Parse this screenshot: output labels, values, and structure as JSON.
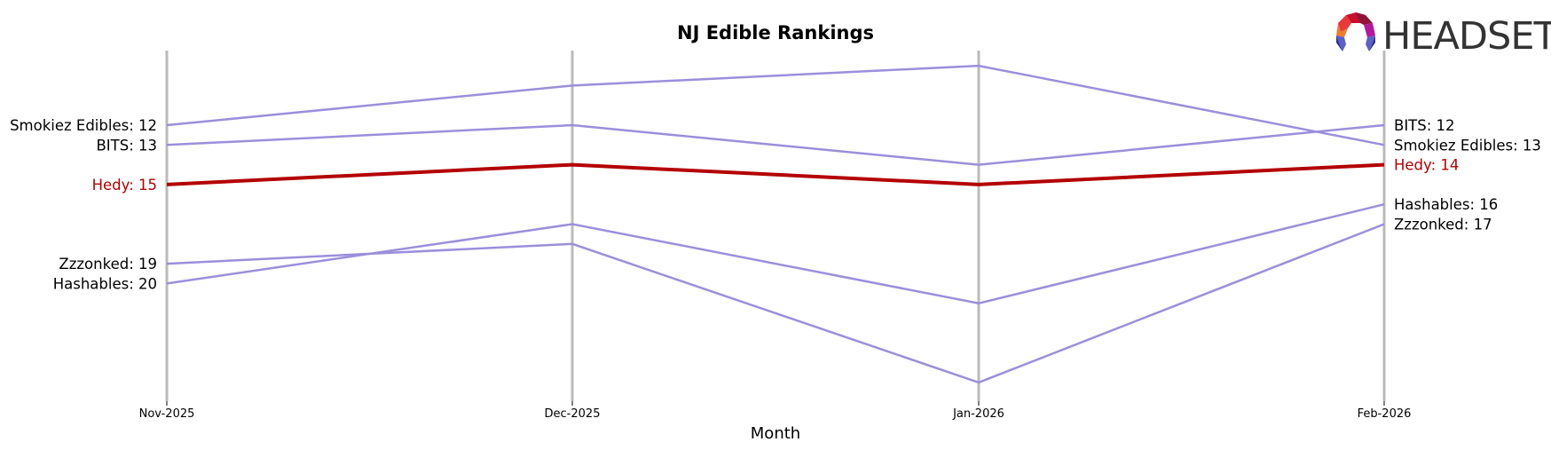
{
  "chart_data": {
    "type": "line",
    "title": "NJ Edible Rankings",
    "xlabel": "Month",
    "ylabel": "",
    "categories": [
      "Nov-2025",
      "Dec-2025",
      "Jan-2026",
      "Feb-2026"
    ],
    "y_inverted": true,
    "ylim": [
      9,
      25
    ],
    "grid": "vertical axis lines at each month",
    "legend": "inline end labels (left: first month, right: last month)",
    "series": [
      {
        "name": "Smokiez Edibles",
        "values": [
          12,
          10,
          9,
          13
        ],
        "color": "#9b8fdb",
        "highlight": false
      },
      {
        "name": "BITS",
        "values": [
          13,
          12,
          14,
          12
        ],
        "color": "#9b8fdb",
        "highlight": false
      },
      {
        "name": "Hedy",
        "values": [
          15,
          14,
          15,
          14
        ],
        "color": "#b30000",
        "highlight": true
      },
      {
        "name": "Zzzonked",
        "values": [
          19,
          18,
          25,
          17
        ],
        "color": "#9b8fdb",
        "highlight": false
      },
      {
        "name": "Hashables",
        "values": [
          20,
          17,
          21,
          16
        ],
        "color": "#9b8fdb",
        "highlight": false
      }
    ],
    "left_labels": [
      {
        "text": "Smokiez Edibles: 12",
        "rank": 12,
        "color": "#000000"
      },
      {
        "text": "BITS: 13",
        "rank": 13,
        "color": "#000000"
      },
      {
        "text": "Hedy: 15",
        "rank": 15,
        "color": "#b30000"
      },
      {
        "text": "Zzzonked: 19",
        "rank": 19,
        "color": "#000000"
      },
      {
        "text": "Hashables: 20",
        "rank": 20,
        "color": "#000000"
      }
    ],
    "right_labels": [
      {
        "text": "BITS: 12",
        "rank": 12,
        "color": "#000000"
      },
      {
        "text": "Smokiez Edibles: 13",
        "rank": 13,
        "color": "#000000"
      },
      {
        "text": "Hedy: 14",
        "rank": 14,
        "color": "#b30000"
      },
      {
        "text": "Hashables: 16",
        "rank": 16,
        "color": "#000000"
      },
      {
        "text": "Zzzonked: 17",
        "rank": 17,
        "color": "#000000"
      }
    ]
  },
  "logo": {
    "text": "HEADSET"
  },
  "colors": {
    "axis": "#bbbbbb",
    "muted_line": "#9b8fdb",
    "highlight_line": "#b30000"
  }
}
